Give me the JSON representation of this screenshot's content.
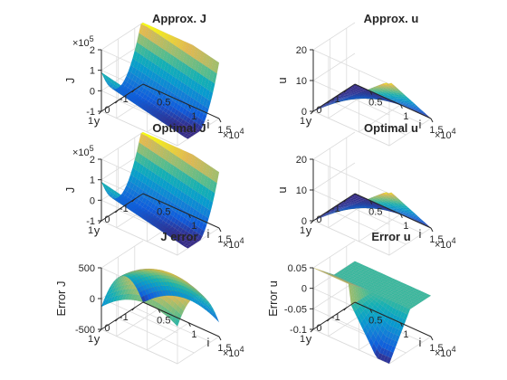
{
  "chart_data": [
    {
      "type": "surface",
      "title": "Approx. J",
      "xlabel": "i",
      "ylabel": "y",
      "zlabel": "J",
      "xlim": [
        2500,
        15000
      ],
      "x_ticks": [
        "0.5",
        "1",
        "1.5"
      ],
      "x_multiplier": "10",
      "x_exponent": "4",
      "ylim": [
        -1.5,
        1
      ],
      "y_ticks": [
        "-1",
        "0",
        "1"
      ],
      "zlim": [
        -100000,
        200000
      ],
      "z_ticks": [
        "-1",
        "0",
        "1",
        "2"
      ],
      "z_multiplier": "10",
      "z_exponent": "5",
      "colormap": "parula",
      "surface_model": "bowl"
    },
    {
      "type": "surface",
      "title": "Approx. u",
      "xlabel": "i",
      "ylabel": "y",
      "zlabel": "u",
      "xlim": [
        2500,
        15000
      ],
      "x_ticks": [
        "0.5",
        "1",
        "1.5"
      ],
      "x_multiplier": "10",
      "x_exponent": "4",
      "ylim": [
        -1.5,
        1
      ],
      "y_ticks": [
        "-1",
        "0",
        "1"
      ],
      "zlim": [
        0,
        20
      ],
      "z_ticks": [
        "0",
        "10",
        "20"
      ],
      "colormap": "parula",
      "surface_model": "ramp"
    },
    {
      "type": "surface",
      "title": "Optimal J",
      "xlabel": "i",
      "ylabel": "y",
      "zlabel": "J",
      "xlim": [
        2500,
        15000
      ],
      "x_ticks": [
        "0.5",
        "1",
        "1.5"
      ],
      "x_multiplier": "10",
      "x_exponent": "4",
      "ylim": [
        -1.5,
        1
      ],
      "y_ticks": [
        "-1",
        "0",
        "1"
      ],
      "zlim": [
        -100000,
        200000
      ],
      "z_ticks": [
        "-1",
        "0",
        "1",
        "2"
      ],
      "z_multiplier": "10",
      "z_exponent": "5",
      "colormap": "parula",
      "surface_model": "bowl"
    },
    {
      "type": "surface",
      "title": "Optimal u",
      "xlabel": "i",
      "ylabel": "y",
      "zlabel": "u",
      "xlim": [
        2500,
        15000
      ],
      "x_ticks": [
        "0.5",
        "1",
        "1.5"
      ],
      "x_multiplier": "10",
      "x_exponent": "4",
      "ylim": [
        -1.5,
        1
      ],
      "y_ticks": [
        "-1",
        "0",
        "1"
      ],
      "zlim": [
        0,
        20
      ],
      "z_ticks": [
        "0",
        "10",
        "20"
      ],
      "colormap": "parula",
      "surface_model": "ramp"
    },
    {
      "type": "surface",
      "title": "J error",
      "xlabel": "i",
      "ylabel": "y",
      "zlabel": "Error J",
      "xlim": [
        2500,
        15000
      ],
      "x_ticks": [
        "0.5",
        "1",
        "1.5"
      ],
      "x_multiplier": "10",
      "x_exponent": "4",
      "ylim": [
        -1.5,
        1
      ],
      "y_ticks": [
        "-1",
        "0",
        "1"
      ],
      "zlim": [
        -500,
        500
      ],
      "z_ticks": [
        "-500",
        "0",
        "500"
      ],
      "colormap": "parula",
      "surface_model": "ridge"
    },
    {
      "type": "surface",
      "title": "Error u",
      "xlabel": "i",
      "ylabel": "y",
      "zlabel": "Error u",
      "xlim": [
        2500,
        15000
      ],
      "x_ticks": [
        "0.5",
        "1",
        "1.5"
      ],
      "x_multiplier": "10",
      "x_exponent": "4",
      "ylim": [
        -1.5,
        1
      ],
      "y_ticks": [
        "-1",
        "0",
        "1"
      ],
      "zlim": [
        -0.1,
        0.05
      ],
      "z_ticks": [
        "0.05",
        "0",
        "-0.05",
        "-0.1"
      ],
      "colormap": "parula",
      "surface_model": "step"
    }
  ]
}
